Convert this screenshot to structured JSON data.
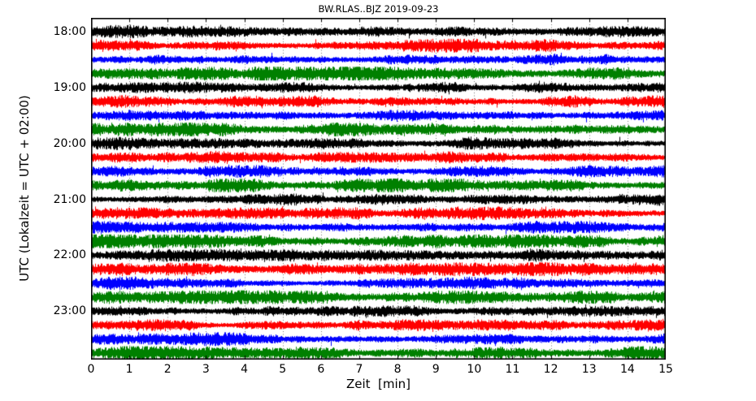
{
  "chart_data": {
    "type": "line",
    "subtype": "seismogram-dayplot-helicorder",
    "title": "BW.RLAS..BJZ 2019-09-23",
    "xlabel": "Zeit  [min]",
    "ylabel": "UTC (Lokalzeit = UTC + 02:00)",
    "xlim": [
      0,
      15
    ],
    "minutes_per_line": 15,
    "x_ticks": [
      0,
      1,
      2,
      3,
      4,
      5,
      6,
      7,
      8,
      9,
      10,
      11,
      12,
      13,
      14,
      15
    ],
    "y_tick_labels": [
      "18:00",
      "19:00",
      "20:00",
      "21:00",
      "22:00",
      "23:00"
    ],
    "grid": "vertical dotted gridline at every minute",
    "legend": "none",
    "trace_color_cycle": [
      "#000000",
      "#ff0000",
      "#0000ff",
      "#008000"
    ],
    "traces": [
      {
        "start_utc": "18:00",
        "color": "#000000",
        "amp": 4.2
      },
      {
        "start_utc": "18:15",
        "color": "#ff0000",
        "amp": 4.4
      },
      {
        "start_utc": "18:30",
        "color": "#0000ff",
        "amp": 4.3
      },
      {
        "start_utc": "18:45",
        "color": "#008000",
        "amp": 5.6
      },
      {
        "start_utc": "19:00",
        "color": "#000000",
        "amp": 4.2
      },
      {
        "start_utc": "19:15",
        "color": "#ff0000",
        "amp": 4.4
      },
      {
        "start_utc": "19:30",
        "color": "#0000ff",
        "amp": 4.3
      },
      {
        "start_utc": "19:45",
        "color": "#008000",
        "amp": 5.7
      },
      {
        "start_utc": "20:00",
        "color": "#000000",
        "amp": 4.1
      },
      {
        "start_utc": "20:15",
        "color": "#ff0000",
        "amp": 4.3
      },
      {
        "start_utc": "20:30",
        "color": "#0000ff",
        "amp": 4.4
      },
      {
        "start_utc": "20:45",
        "color": "#008000",
        "amp": 5.5
      },
      {
        "start_utc": "21:00",
        "color": "#000000",
        "amp": 4.3
      },
      {
        "start_utc": "21:15",
        "color": "#ff0000",
        "amp": 4.5
      },
      {
        "start_utc": "21:30",
        "color": "#0000ff",
        "amp": 4.3
      },
      {
        "start_utc": "21:45",
        "color": "#008000",
        "amp": 5.6
      },
      {
        "start_utc": "22:00",
        "color": "#000000",
        "amp": 4.4
      },
      {
        "start_utc": "22:15",
        "color": "#ff0000",
        "amp": 4.6
      },
      {
        "start_utc": "22:30",
        "color": "#0000ff",
        "amp": 4.2
      },
      {
        "start_utc": "22:45",
        "color": "#008000",
        "amp": 5.5
      },
      {
        "start_utc": "23:00",
        "color": "#000000",
        "amp": 4.2
      },
      {
        "start_utc": "23:15",
        "color": "#ff0000",
        "amp": 4.4
      },
      {
        "start_utc": "23:30",
        "color": "#0000ff",
        "amp": 4.3
      },
      {
        "start_utc": "23:45",
        "color": "#008000",
        "amp": 5.6
      }
    ],
    "noise": {
      "seed": 20190923,
      "spike_probability": 0.0018
    },
    "colors": {
      "frame": "#000000",
      "background": "#ffffff",
      "grid": "#000000"
    }
  }
}
